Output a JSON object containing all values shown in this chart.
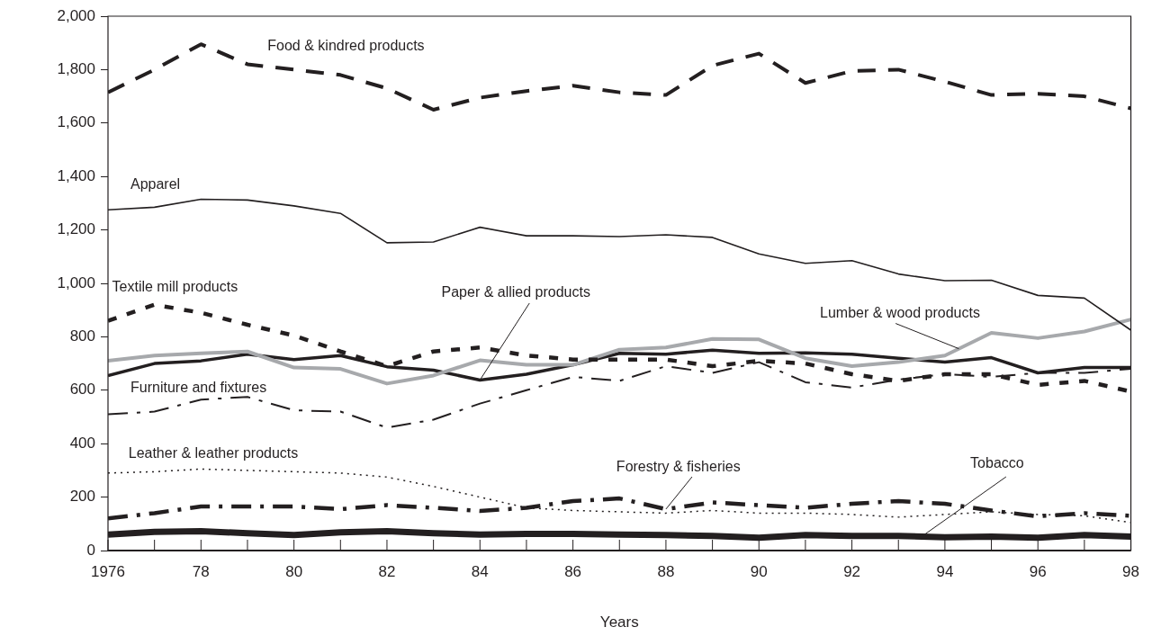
{
  "chart_data": {
    "type": "line",
    "xlabel": "Years",
    "x": [
      1976,
      1977,
      1978,
      1979,
      1980,
      1981,
      1982,
      1983,
      1984,
      1985,
      1986,
      1987,
      1988,
      1989,
      1990,
      1991,
      1992,
      1993,
      1994,
      1995,
      1996,
      1997,
      1998
    ],
    "xlim": [
      1976,
      1998
    ],
    "xticks": [
      {
        "value": 1976,
        "label": "1976"
      },
      {
        "value": 1977,
        "label": null
      },
      {
        "value": 1978,
        "label": "78"
      },
      {
        "value": 1979,
        "label": null
      },
      {
        "value": 1980,
        "label": "80"
      },
      {
        "value": 1981,
        "label": null
      },
      {
        "value": 1982,
        "label": "82"
      },
      {
        "value": 1983,
        "label": null
      },
      {
        "value": 1984,
        "label": "84"
      },
      {
        "value": 1985,
        "label": null
      },
      {
        "value": 1986,
        "label": "86"
      },
      {
        "value": 1987,
        "label": null
      },
      {
        "value": 1988,
        "label": "88"
      },
      {
        "value": 1989,
        "label": null
      },
      {
        "value": 1990,
        "label": "90"
      },
      {
        "value": 1991,
        "label": null
      },
      {
        "value": 1992,
        "label": "92"
      },
      {
        "value": 1993,
        "label": null
      },
      {
        "value": 1994,
        "label": "94"
      },
      {
        "value": 1995,
        "label": null
      },
      {
        "value": 1996,
        "label": "96"
      },
      {
        "value": 1997,
        "label": null
      },
      {
        "value": 1998,
        "label": "98"
      }
    ],
    "ylim": [
      0,
      2000
    ],
    "yticks": [
      {
        "value": 0,
        "label": "0"
      },
      {
        "value": 200,
        "label": "200"
      },
      {
        "value": 400,
        "label": "400"
      },
      {
        "value": 600,
        "label": "600"
      },
      {
        "value": 800,
        "label": "800"
      },
      {
        "value": 1000,
        "label": "1,000"
      },
      {
        "value": 1200,
        "label": "1,200"
      },
      {
        "value": 1400,
        "label": "1,400"
      },
      {
        "value": 1600,
        "label": "1,600"
      },
      {
        "value": 1800,
        "label": "1,800"
      },
      {
        "value": 2000,
        "label": "2,000"
      }
    ],
    "grid": false,
    "legend": false,
    "marker": "none",
    "series": [
      {
        "name": "Food & kindred products",
        "color": "#231f20",
        "line_style": "dashed",
        "values": [
          1715,
          1800,
          1895,
          1820,
          1800,
          1780,
          1730,
          1650,
          1695,
          1720,
          1740,
          1715,
          1705,
          1815,
          1860,
          1750,
          1795,
          1800,
          1755,
          1705,
          1710,
          1700,
          1655
        ]
      },
      {
        "name": "Apparel",
        "color": "#231f20",
        "line_style": "solid",
        "values": [
          1275,
          1285,
          1315,
          1312,
          1290,
          1262,
          1152,
          1155,
          1210,
          1178,
          1178,
          1175,
          1182,
          1172,
          1110,
          1075,
          1085,
          1035,
          1010,
          1012,
          955,
          945,
          825
        ]
      },
      {
        "name": "Textile mill products",
        "color": "#231f20",
        "line_style": "dashed",
        "values": [
          860,
          920,
          890,
          845,
          805,
          745,
          690,
          745,
          760,
          730,
          715,
          715,
          715,
          690,
          710,
          700,
          660,
          635,
          660,
          660,
          620,
          635,
          595
        ]
      },
      {
        "name": "Lumber & wood products",
        "color": "#a7a9ac",
        "line_style": "solid",
        "values": [
          710,
          730,
          738,
          745,
          685,
          680,
          625,
          655,
          712,
          695,
          695,
          752,
          760,
          792,
          790,
          720,
          690,
          705,
          730,
          815,
          795,
          820,
          865
        ]
      },
      {
        "name": "Paper & allied products",
        "color": "#231f20",
        "line_style": "solid",
        "values": [
          655,
          700,
          710,
          735,
          715,
          730,
          688,
          675,
          638,
          660,
          695,
          738,
          735,
          750,
          738,
          740,
          735,
          720,
          705,
          722,
          665,
          685,
          685
        ]
      },
      {
        "name": "Furniture and fixtures",
        "color": "#231f20",
        "line_style": "dashdot",
        "values": [
          510,
          520,
          565,
          575,
          525,
          520,
          460,
          490,
          550,
          600,
          650,
          635,
          690,
          665,
          705,
          630,
          610,
          640,
          660,
          650,
          665,
          665,
          680
        ]
      },
      {
        "name": "Leather & leather products",
        "color": "#231f20",
        "line_style": "dotted",
        "values": [
          290,
          295,
          305,
          300,
          295,
          290,
          275,
          240,
          200,
          160,
          150,
          145,
          140,
          150,
          140,
          140,
          135,
          125,
          135,
          145,
          135,
          130,
          105
        ]
      },
      {
        "name": "Forestry & fisheries",
        "color": "#231f20",
        "line_style": "dashdot",
        "values": [
          120,
          140,
          165,
          165,
          165,
          155,
          170,
          160,
          148,
          160,
          185,
          195,
          155,
          180,
          170,
          160,
          175,
          185,
          175,
          150,
          128,
          140,
          130
        ]
      },
      {
        "name": "Tobacco",
        "color": "#231f20",
        "line_style": "solid",
        "values": [
          60,
          70,
          72,
          65,
          58,
          68,
          72,
          65,
          60,
          62,
          62,
          60,
          58,
          55,
          48,
          58,
          55,
          55,
          50,
          52,
          48,
          58,
          52
        ]
      }
    ]
  }
}
